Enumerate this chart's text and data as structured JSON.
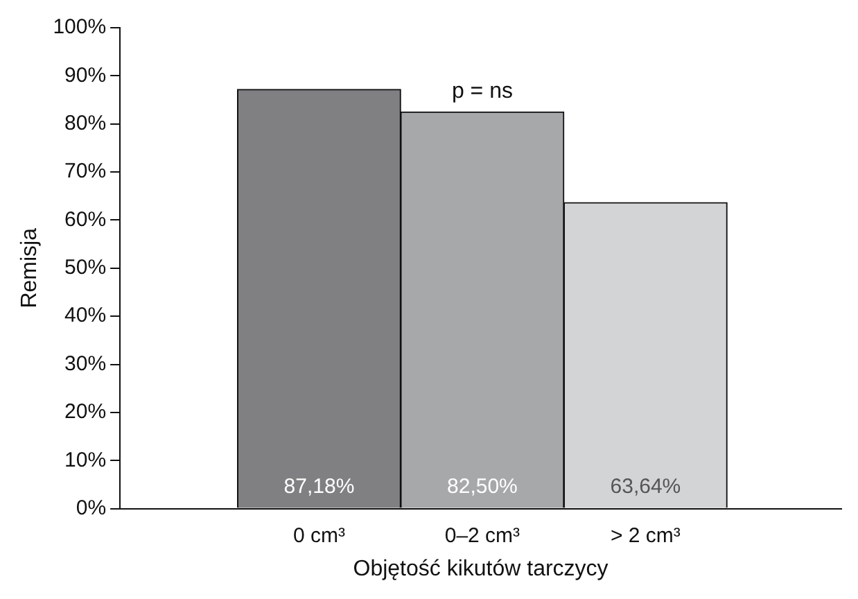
{
  "chart_data": {
    "type": "bar",
    "xlabel": "Objętość kikutów tarczycy",
    "ylabel": "Remisja",
    "categories": [
      "0 cm³",
      "0–2 cm³",
      "> 2 cm³"
    ],
    "values": [
      87.18,
      82.5,
      63.64
    ],
    "colors": [
      "#808083",
      "#a7a8aa",
      "#d3d4d5"
    ],
    "value_labels": [
      "87,18%",
      "82,50%",
      "63,64%"
    ],
    "ylim": [
      0,
      100
    ],
    "yticks": [
      {
        "value": 0,
        "label": "0%"
      },
      {
        "value": 10,
        "label": "10%"
      },
      {
        "value": 20,
        "label": "20%"
      },
      {
        "value": 30,
        "label": "30%"
      },
      {
        "value": 40,
        "label": "40%"
      },
      {
        "value": 50,
        "label": "50%"
      },
      {
        "value": 60,
        "label": "60%"
      },
      {
        "value": 70,
        "label": "70%"
      },
      {
        "value": 80,
        "label": "80%"
      },
      {
        "value": 90,
        "label": "90%"
      },
      {
        "value": 100,
        "label": "100%"
      }
    ],
    "annotations": [
      "p = ns"
    ],
    "grid": false,
    "legend": false
  }
}
